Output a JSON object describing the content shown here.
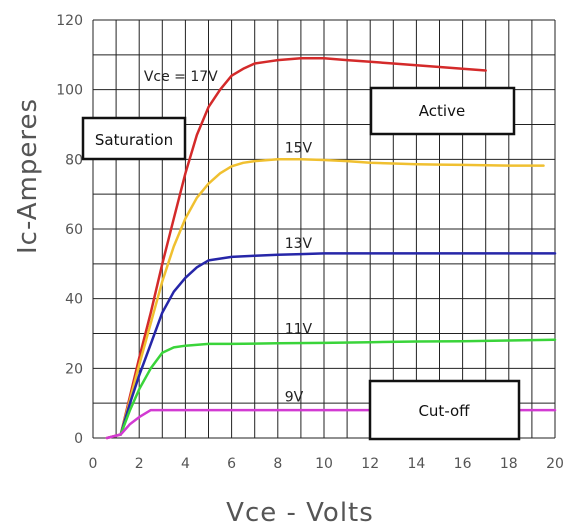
{
  "chart_data": {
    "type": "line",
    "title": "",
    "xlabel": "Vce - Volts",
    "ylabel": "Ic-Amperes",
    "xlim": [
      0,
      20
    ],
    "ylim": [
      0,
      120
    ],
    "xticks": [
      0,
      2,
      4,
      6,
      8,
      10,
      12,
      14,
      16,
      18,
      20
    ],
    "yticks": [
      0,
      20,
      40,
      60,
      80,
      100,
      120
    ],
    "grid": true,
    "series": [
      {
        "name": "Vce = 17V",
        "color": "#d42a2a",
        "x": [
          0.6,
          1.2,
          1.6,
          2.0,
          2.5,
          3.0,
          3.5,
          4.0,
          4.5,
          5.0,
          5.5,
          6.0,
          6.5,
          7.0,
          7.5,
          8.0,
          9.0,
          10.0,
          11.0,
          12.0,
          13.0,
          14.0,
          15.0,
          16.0,
          17.0
        ],
        "y": [
          0,
          1,
          12,
          23,
          36,
          50,
          63,
          76,
          87,
          95,
          100,
          104,
          106,
          107.5,
          108,
          108.5,
          109,
          109,
          108.5,
          108,
          107.5,
          107,
          106.5,
          106,
          105.5
        ]
      },
      {
        "name": "15V",
        "color": "#f0c030",
        "x": [
          1.2,
          1.6,
          2.0,
          2.5,
          3.0,
          3.5,
          4.0,
          4.5,
          5.0,
          5.5,
          6.0,
          6.5,
          7.0,
          8.0,
          9.0,
          10.0,
          11.0,
          12.0,
          13.0,
          14.0,
          15.0,
          16.0,
          17.0,
          18.0,
          19.0,
          19.5
        ],
        "y": [
          1,
          11,
          21,
          33,
          45,
          55,
          63,
          69,
          73,
          76,
          78,
          79,
          79.5,
          80,
          80,
          79.8,
          79.5,
          79,
          78.8,
          78.6,
          78.5,
          78.4,
          78.3,
          78.2,
          78.2,
          78.2
        ]
      },
      {
        "name": "13V",
        "color": "#2626a8",
        "x": [
          1.2,
          1.6,
          2.0,
          2.5,
          3.0,
          3.5,
          4.0,
          4.5,
          5.0,
          5.5,
          6.0,
          7.0,
          8.0,
          9.0,
          10.0,
          12.0,
          14.0,
          16.0,
          18.0,
          20.0
        ],
        "y": [
          1,
          10,
          18,
          27,
          36,
          42,
          46,
          49,
          51,
          51.5,
          52,
          52.3,
          52.6,
          52.8,
          53,
          53,
          53,
          53,
          53,
          53
        ]
      },
      {
        "name": "11V",
        "color": "#3ad43a",
        "x": [
          1.2,
          1.6,
          2.0,
          2.5,
          3.0,
          3.5,
          4.0,
          5.0,
          6.0,
          8.0,
          10.0,
          12.0,
          14.0,
          16.0,
          18.0,
          20.0
        ],
        "y": [
          1,
          8,
          14,
          20,
          24.5,
          26,
          26.5,
          27,
          27,
          27.2,
          27.3,
          27.5,
          27.7,
          27.8,
          28,
          28.2
        ]
      },
      {
        "name": "9V",
        "color": "#d23ad2",
        "x": [
          0.6,
          1.2,
          1.6,
          2.0,
          2.5,
          3.0,
          4.0,
          6.0,
          8.0,
          10.0,
          12.0,
          14.0,
          16.0,
          18.0,
          20.0
        ],
        "y": [
          0,
          1,
          4,
          6,
          8,
          8,
          8,
          8,
          8,
          8,
          8,
          8,
          8,
          8,
          8
        ]
      }
    ],
    "series_labels": [
      {
        "text": "Vce = 17V",
        "x": 2.2,
        "y": 102.5
      },
      {
        "text": "15V",
        "x": 8.3,
        "y": 82
      },
      {
        "text": "13V",
        "x": 8.3,
        "y": 54.5
      },
      {
        "text": "11V",
        "x": 8.3,
        "y": 30
      },
      {
        "text": "9V",
        "x": 8.3,
        "y": 10.5
      }
    ],
    "regions": [
      {
        "id": "saturation",
        "text": "Saturation"
      },
      {
        "id": "active",
        "text": "Active"
      },
      {
        "id": "cutoff",
        "text": "Cut-off"
      }
    ]
  }
}
